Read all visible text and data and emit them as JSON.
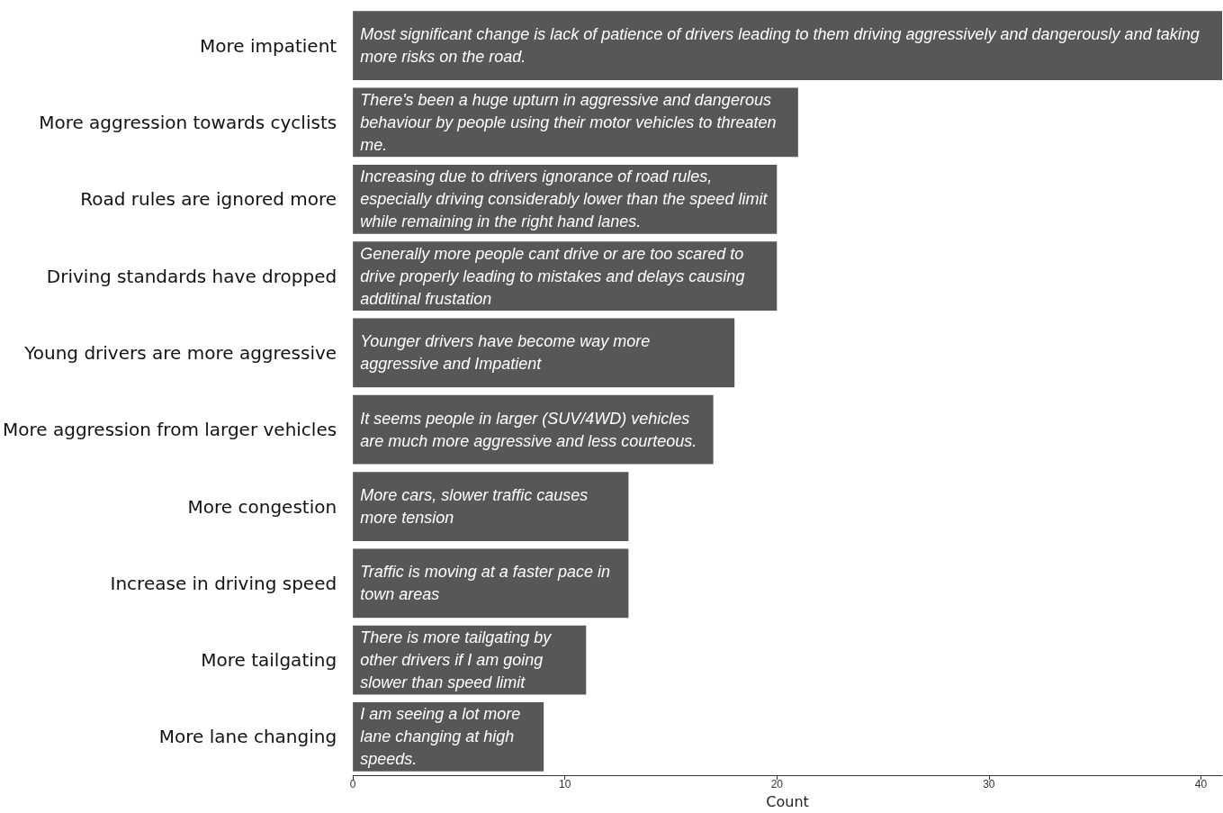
{
  "chart_data": {
    "type": "bar",
    "orientation": "horizontal",
    "xlabel": "Count",
    "categories": [
      "More impatient",
      "More aggression towards cyclists",
      "Road rules are ignored more",
      "Driving standards have dropped",
      "Young drivers are more aggressive",
      "More aggression from larger vehicles",
      "More congestion",
      "Increase in driving speed",
      "More tailgating",
      "More lane changing"
    ],
    "values": [
      41,
      21,
      20,
      20,
      18,
      17,
      13,
      13,
      11,
      9
    ],
    "color": "#575757",
    "xlim": [
      0,
      41
    ],
    "xticks": [
      0,
      10,
      20,
      30,
      40
    ],
    "grid": false,
    "annotations": [
      {
        "text": "Most significant change is lack of patience of drivers leading to them driving aggressively and dangerously and taking more risks on the road.",
        "y": "More impatient"
      },
      {
        "text": "There's been a huge upturn in aggressive and dangerous behaviour by people using their motor vehicles to threaten me.",
        "y": "More aggression towards cyclists"
      },
      {
        "text": "Increasing due to drivers ignorance of road rules, especially driving considerably lower than the speed limit while remaining in the right hand lanes.",
        "y": "Road rules are ignored more"
      },
      {
        "text": "Generally more people cant drive or are too scared to drive properly leading to mistakes and delays causing additinal frustation",
        "y": "Driving standards have dropped"
      },
      {
        "text": "Younger drivers have become way more aggressive and Impatient",
        "y": "Young drivers are more aggressive"
      },
      {
        "text": "It seems people in larger (SUV/4WD) vehicles are much more aggressive and less courteous.",
        "y": "More aggression from larger vehicles"
      },
      {
        "text": "More cars, slower traffic causes more tension",
        "y": "More congestion"
      },
      {
        "text": "Traffic is moving at a faster pace in town areas",
        "y": "Increase in driving speed"
      },
      {
        "text": "There is more tailgating by other drivers if I am going slower than speed limit",
        "y": "More tailgating"
      },
      {
        "text": "I am seeing a lot more lane changing at high speeds.",
        "y": "More lane changing"
      }
    ]
  }
}
